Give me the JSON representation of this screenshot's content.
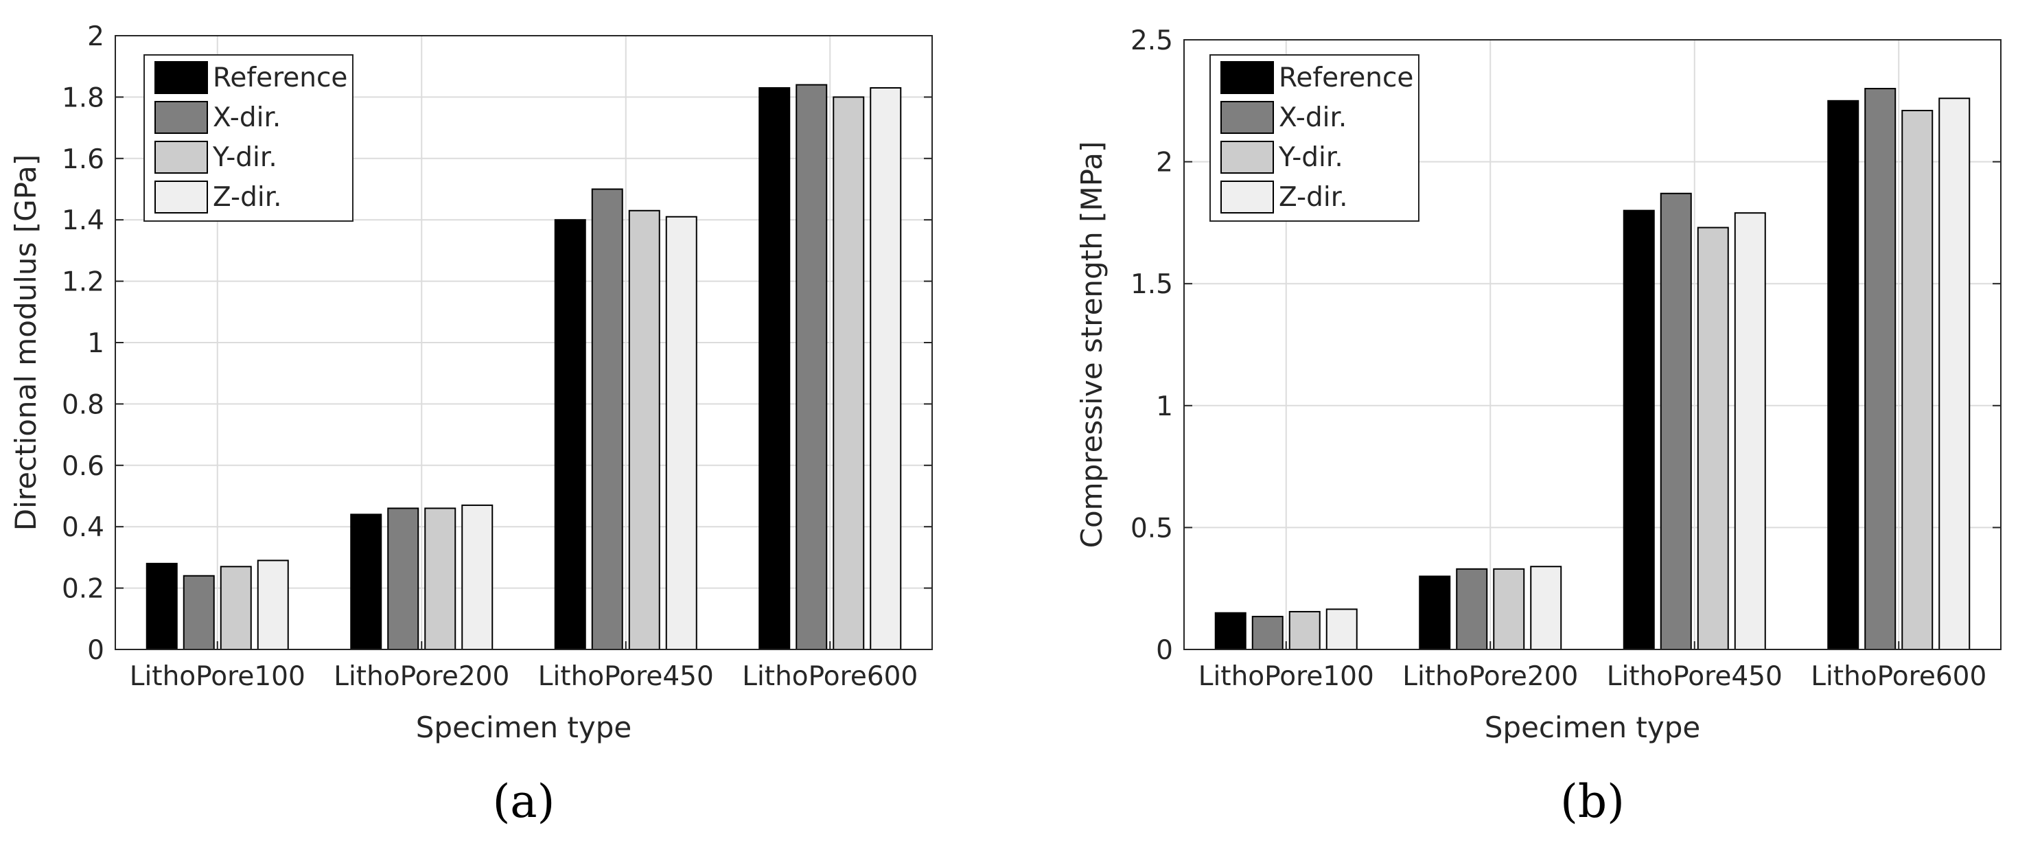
{
  "chart_data": [
    {
      "type": "bar",
      "panel_label": "(a)",
      "categories": [
        "LithoPore100",
        "LithoPore200",
        "LithoPore450",
        "LithoPore600"
      ],
      "series": [
        {
          "name": "Reference",
          "color": "#000000",
          "values": [
            0.28,
            0.44,
            1.4,
            1.83
          ]
        },
        {
          "name": "X-dir.",
          "color": "#7f7f7f",
          "values": [
            0.24,
            0.46,
            1.5,
            1.84
          ]
        },
        {
          "name": "Y-dir.",
          "color": "#cccccc",
          "values": [
            0.27,
            0.46,
            1.43,
            1.8
          ]
        },
        {
          "name": "Z-dir.",
          "color": "#efefef",
          "values": [
            0.29,
            0.47,
            1.41,
            1.83
          ]
        }
      ],
      "xlabel": "Specimen type",
      "ylabel": "Directional modulus [GPa]",
      "ylim": [
        0,
        2
      ],
      "yticks": [
        0,
        0.2,
        0.4,
        0.6,
        0.8,
        1,
        1.2,
        1.4,
        1.6,
        1.8,
        2
      ],
      "ytick_labels": [
        "0",
        "0.2",
        "0.4",
        "0.6",
        "0.8",
        "1",
        "1.2",
        "1.4",
        "1.6",
        "1.8",
        "2"
      ],
      "grid": true,
      "legend_position": "top-left"
    },
    {
      "type": "bar",
      "panel_label": "(b)",
      "categories": [
        "LithoPore100",
        "LithoPore200",
        "LithoPore450",
        "LithoPore600"
      ],
      "series": [
        {
          "name": "Reference",
          "color": "#000000",
          "values": [
            0.15,
            0.3,
            1.8,
            2.25
          ]
        },
        {
          "name": "X-dir.",
          "color": "#7f7f7f",
          "values": [
            0.135,
            0.33,
            1.87,
            2.3
          ]
        },
        {
          "name": "Y-dir.",
          "color": "#cccccc",
          "values": [
            0.155,
            0.33,
            1.73,
            2.21
          ]
        },
        {
          "name": "Z-dir.",
          "color": "#efefef",
          "values": [
            0.165,
            0.34,
            1.79,
            2.26
          ]
        }
      ],
      "xlabel": "Specimen type",
      "ylabel": "Compressive strength [MPa]",
      "ylim": [
        0,
        2.5
      ],
      "yticks": [
        0,
        0.5,
        1,
        1.5,
        2,
        2.5
      ],
      "ytick_labels": [
        "0",
        "0.5",
        "1",
        "1.5",
        "2",
        "2.5"
      ],
      "grid": true,
      "legend_position": "top-left"
    }
  ]
}
